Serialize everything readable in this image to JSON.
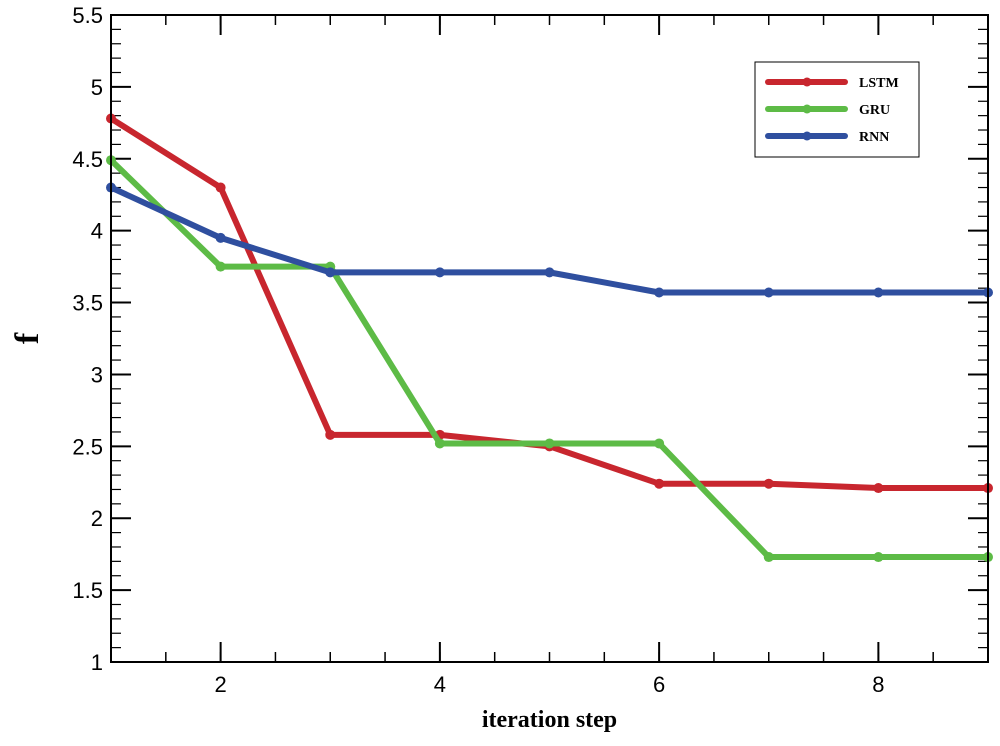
{
  "chart_data": {
    "type": "line",
    "title": "",
    "xlabel": "iteration step",
    "ylabel": "f",
    "xlim": [
      1,
      9
    ],
    "ylim": [
      1,
      5.5
    ],
    "x_major_ticks": [
      2,
      4,
      6,
      8
    ],
    "y_major_ticks": [
      1,
      1.5,
      2,
      2.5,
      3,
      3.5,
      4,
      4.5,
      5,
      5.5
    ],
    "x_tick_labels": [
      "2",
      "4",
      "6",
      "8"
    ],
    "y_tick_labels": [
      "1",
      "1.5",
      "2",
      "2.5",
      "3",
      "3.5",
      "4",
      "4.5",
      "5",
      "5.5"
    ],
    "grid": false,
    "legend_position": "top-right",
    "x": [
      1,
      2,
      3,
      4,
      5,
      6,
      7,
      8,
      9
    ],
    "series": [
      {
        "name": "LSTM",
        "color": "#c8262e",
        "values": [
          4.78,
          4.3,
          2.58,
          2.58,
          2.5,
          2.24,
          2.24,
          2.21,
          2.21
        ]
      },
      {
        "name": "GRU",
        "color": "#5dbb46",
        "values": [
          4.49,
          3.75,
          3.75,
          2.52,
          2.52,
          2.52,
          1.73,
          1.73,
          1.73
        ]
      },
      {
        "name": "RNN",
        "color": "#2f4f9f",
        "values": [
          4.3,
          3.95,
          3.71,
          3.71,
          3.71,
          3.57,
          3.57,
          3.57,
          3.57
        ]
      }
    ]
  }
}
